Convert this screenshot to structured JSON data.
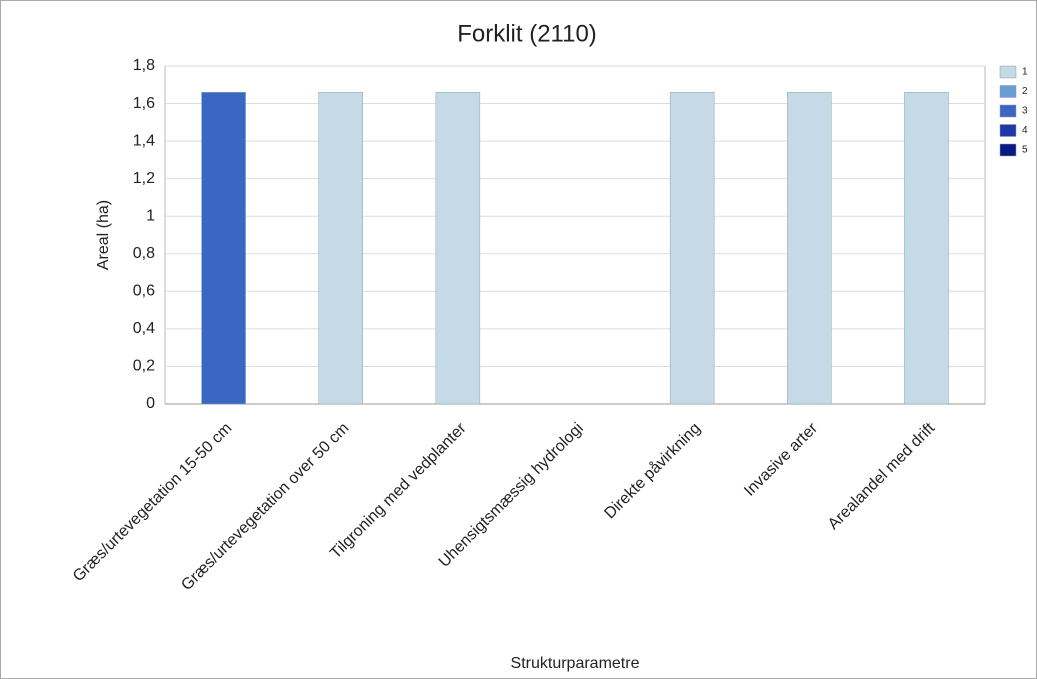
{
  "chart_data": {
    "type": "bar",
    "stacked": true,
    "title": "Forklit (2110)",
    "x_label": "Strukturparametre",
    "y_label": "Areal (ha)",
    "categories": [
      "Græs/urtevegetation 15-50 cm",
      "Græs/urtevegetation over 50 cm",
      "Tilgroning med vedplanter",
      "Uhensigtsmæssig hydrologi",
      "Direkte påvirkning",
      "Invasive arter",
      "Arealandel med drift"
    ],
    "series": [
      {
        "name": "1",
        "color": "#c5d9e6",
        "values": [
          0,
          1.66,
          1.66,
          0,
          1.66,
          1.66,
          1.66
        ]
      },
      {
        "name": "2",
        "color": "#6b9bd0",
        "values": [
          0,
          0,
          0,
          0,
          0,
          0,
          0
        ]
      },
      {
        "name": "3",
        "color": "#3a66c4",
        "values": [
          1.66,
          0,
          0,
          0,
          0,
          0,
          0
        ]
      },
      {
        "name": "4",
        "color": "#1c3aa8",
        "values": [
          0,
          0,
          0,
          0,
          0,
          0,
          0
        ]
      },
      {
        "name": "5",
        "color": "#0a1a80",
        "values": [
          0,
          0,
          0,
          0,
          0,
          0,
          0
        ]
      }
    ],
    "ylim": [
      0,
      1.8
    ],
    "yticks": [
      0,
      {
        "value": 0.2,
        "label": "0,2"
      },
      {
        "value": 0.4,
        "label": "0,4"
      },
      {
        "value": 0.6,
        "label": "0,6"
      },
      {
        "value": 0.8,
        "label": "0,8"
      },
      1,
      {
        "value": 1.2,
        "label": "1,2"
      },
      {
        "value": 1.4,
        "label": "1,4"
      },
      {
        "value": 1.6,
        "label": "1,6"
      },
      {
        "value": 1.8,
        "label": "1,8"
      }
    ],
    "grid": true,
    "legend": "right"
  }
}
